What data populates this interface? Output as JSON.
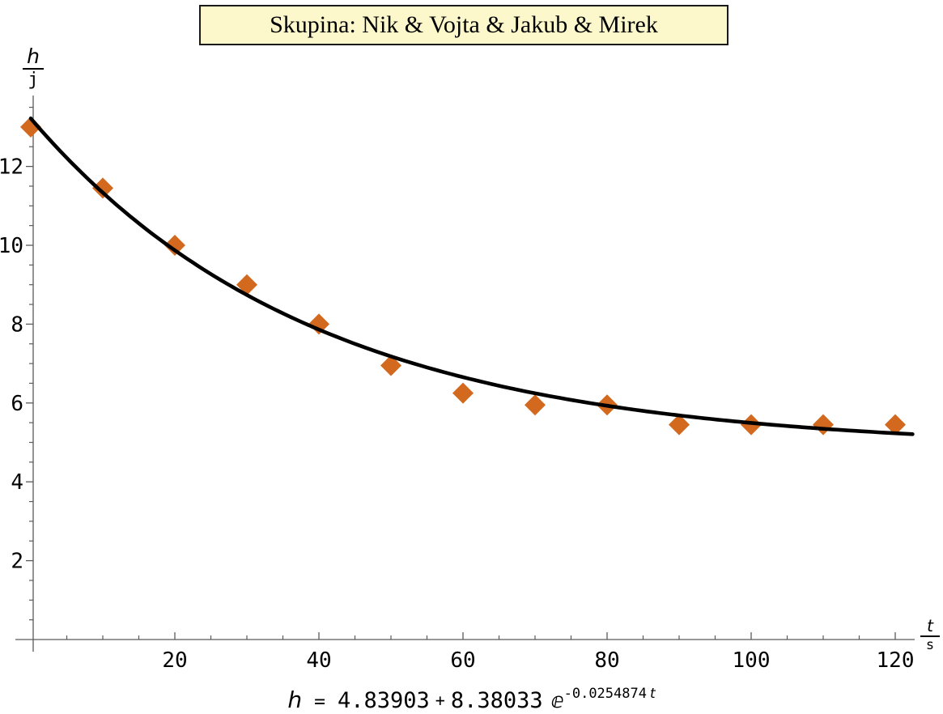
{
  "title": "Skupina: Nik & Vojta & Jakub & Mirek",
  "colors": {
    "marker": "#D2691E",
    "curve": "#000000",
    "axis": "#5a5a5a",
    "title_box_bg": "#FCF8CC",
    "title_box_border": "#1a1a1a"
  },
  "axes": {
    "y_label": {
      "numerator": "h",
      "denominator": "j"
    },
    "x_label": {
      "numerator": "t",
      "denominator": "s"
    }
  },
  "formula": {
    "lhs": "h",
    "equals": "=",
    "intercept": "4.83903",
    "plus": "+",
    "coefficient": "8.38033",
    "exp_symbol": "ⅇ",
    "exponent_coefficient": "-0.0254874",
    "exponent_variable": "t"
  },
  "chart_data": {
    "type": "scatter",
    "title": "Skupina: Nik & Vojta & Jakub & Mirek",
    "xlabel": "t/s",
    "ylabel": "h/j",
    "x": [
      0,
      10,
      20,
      30,
      40,
      50,
      60,
      70,
      80,
      90,
      100,
      110,
      120
    ],
    "y": [
      13.0,
      11.45,
      10.0,
      9.0,
      8.0,
      6.95,
      6.25,
      5.95,
      5.95,
      5.45,
      5.45,
      5.45,
      5.45
    ],
    "fit": {
      "model": "h = a + b*exp(-k*t)",
      "a": 4.83903,
      "b": 8.38033,
      "k": 0.0254874,
      "formula_text": "h = 4.83903 + 8.38033 ⅇ^(-0.0254874 t)"
    },
    "marker": "diamond",
    "xlim": [
      0,
      122.5
    ],
    "ylim": [
      -0.3,
      13.9
    ],
    "grid": false,
    "legend": null,
    "x_tick_values": [
      20,
      40,
      60,
      80,
      100,
      120
    ],
    "x_tick_labels": [
      "20",
      "40",
      "60",
      "80",
      "100",
      "120"
    ],
    "x_minor_ticks": [
      5,
      10,
      15,
      25,
      30,
      35,
      45,
      50,
      55,
      65,
      70,
      75,
      85,
      90,
      95,
      105,
      110,
      115
    ],
    "y_tick_values": [
      2,
      4,
      6,
      8,
      10,
      12
    ],
    "y_tick_labels": [
      "2",
      "4",
      "6",
      "8",
      "10",
      "12"
    ],
    "y_minor_ticks": [
      0.5,
      1,
      1.5,
      2.5,
      3,
      3.5,
      4.5,
      5,
      5.5,
      6.5,
      7,
      7.5,
      8.5,
      9,
      9.5,
      10.5,
      11,
      11.5,
      12.5,
      13,
      13.5
    ]
  }
}
